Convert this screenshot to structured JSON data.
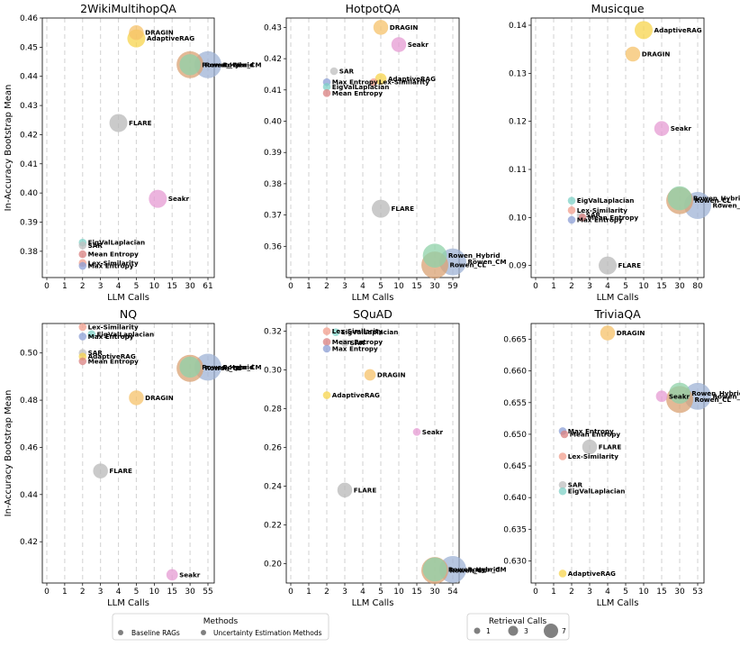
{
  "colors": {
    "DRAGIN": "#f5c16a",
    "AdaptiveRAG": "#f7d44c",
    "Rowen_Hybrid": "#8fd1a8",
    "Rowen_CM": "#9fb3d6",
    "Rowen_CL": "#d9a173",
    "FLARE": "#b8b8b8",
    "Seakr": "#e69bd3",
    "SAR": "#bfbfbf",
    "Max Entropy": "#8c9fd6",
    "EigValLaplacian": "#7fd1c7",
    "Mean Entropy": "#d98080",
    "Lex-Similarity": "#f29d8c",
    "legend_marker": "#808080"
  },
  "x_axis_label": "LLM Calls",
  "y_axis_label": "In-Accuracy Bootstrap Mean",
  "legend": {
    "methods_title": "Methods",
    "methods_items": [
      "Baseline RAGs",
      "Uncertainty Estimation Methods"
    ],
    "retrieval_title": "Retrieval Calls",
    "retrieval_items": [
      "1",
      "3",
      "7"
    ]
  },
  "chart_data": [
    {
      "type": "scatter",
      "title": "2WikiMultihopQA",
      "xlabel": "LLM Calls",
      "ylabel": "In-Accuracy Bootstrap Mean",
      "xticks": [
        "0",
        "1",
        "2",
        "3",
        "4",
        "5",
        "10",
        "15",
        "30",
        "61"
      ],
      "ylim": [
        0.371,
        0.46
      ],
      "yticks": [
        0.38,
        0.39,
        0.4,
        0.41,
        0.42,
        0.43,
        0.44,
        0.45,
        0.46
      ],
      "points": [
        {
          "name": "DRAGIN",
          "x": 5,
          "y": 0.455,
          "r": 3
        },
        {
          "name": "AdaptiveRAG",
          "x": 5,
          "y": 0.453,
          "r": 4
        },
        {
          "name": "Rowen_Hybrid",
          "x": 30,
          "y": 0.444,
          "r": 5
        },
        {
          "name": "Rowen_CM",
          "x": 61,
          "y": 0.444,
          "r": 7
        },
        {
          "name": "Rowen_CL",
          "x": 30,
          "y": 0.444,
          "r": 7
        },
        {
          "name": "FLARE",
          "x": 4,
          "y": 0.424,
          "r": 4
        },
        {
          "name": "Seakr",
          "x": 11,
          "y": 0.398,
          "r": 4
        },
        {
          "name": "EigValLaplacian",
          "x": 2,
          "y": 0.383,
          "r": 1
        },
        {
          "name": "SAR",
          "x": 2,
          "y": 0.382,
          "r": 1
        },
        {
          "name": "Mean Entropy",
          "x": 2,
          "y": 0.379,
          "r": 1
        },
        {
          "name": "Lex-Similarity",
          "x": 2,
          "y": 0.376,
          "r": 1
        },
        {
          "name": "Max Entropy",
          "x": 2,
          "y": 0.375,
          "r": 1
        }
      ]
    },
    {
      "type": "scatter",
      "title": "HotpotQA",
      "xlabel": "LLM Calls",
      "ylabel": "",
      "xticks": [
        "0",
        "1",
        "2",
        "3",
        "4",
        "5",
        "10",
        "15",
        "30",
        "59"
      ],
      "ylim": [
        0.35,
        0.433
      ],
      "yticks": [
        0.36,
        0.37,
        0.38,
        0.39,
        0.4,
        0.41,
        0.42,
        0.43
      ],
      "points": [
        {
          "name": "DRAGIN",
          "x": 5,
          "y": 0.43,
          "r": 3
        },
        {
          "name": "Seakr",
          "x": 10,
          "y": 0.4245,
          "r": 3
        },
        {
          "name": "SAR",
          "x": 2.4,
          "y": 0.416,
          "r": 1
        },
        {
          "name": "AdaptiveRAG",
          "x": 5,
          "y": 0.4135,
          "r": 2
        },
        {
          "name": "Max Entropy",
          "x": 2,
          "y": 0.4125,
          "r": 1
        },
        {
          "name": "Lex-Similarity",
          "x": 4.6,
          "y": 0.4125,
          "r": 1
        },
        {
          "name": "EigValLaplacian",
          "x": 2,
          "y": 0.411,
          "r": 1
        },
        {
          "name": "Mean Entropy",
          "x": 2,
          "y": 0.409,
          "r": 1
        },
        {
          "name": "FLARE",
          "x": 5,
          "y": 0.372,
          "r": 4
        },
        {
          "name": "Rowen_Hybrid",
          "x": 30,
          "y": 0.357,
          "r": 6
        },
        {
          "name": "Rowen_CM",
          "x": 59,
          "y": 0.355,
          "r": 7
        },
        {
          "name": "Rowen_CL",
          "x": 30,
          "y": 0.354,
          "r": 7
        }
      ]
    },
    {
      "type": "scatter",
      "title": "Musicque",
      "xlabel": "LLM Calls",
      "ylabel": "",
      "xticks": [
        "0",
        "1",
        "2",
        "3",
        "4",
        "5",
        "10",
        "15",
        "30",
        "80"
      ],
      "ylim": [
        0.0875,
        0.1415
      ],
      "yticks": [
        0.09,
        0.1,
        0.11,
        0.12,
        0.13,
        0.14
      ],
      "points": [
        {
          "name": "AdaptiveRAG",
          "x": 10,
          "y": 0.139,
          "r": 4
        },
        {
          "name": "DRAGIN",
          "x": 7,
          "y": 0.134,
          "r": 3
        },
        {
          "name": "Seakr",
          "x": 15,
          "y": 0.1185,
          "r": 3
        },
        {
          "name": "EigValLaplacian",
          "x": 2,
          "y": 0.1035,
          "r": 1
        },
        {
          "name": "Lex-Similarity",
          "x": 2,
          "y": 0.1015,
          "r": 1
        },
        {
          "name": "SAR",
          "x": 2.5,
          "y": 0.1005,
          "r": 1
        },
        {
          "name": "Mean Entropy",
          "x": 2.6,
          "y": 0.1,
          "r": 1
        },
        {
          "name": "Max Entropy",
          "x": 2,
          "y": 0.0995,
          "r": 1
        },
        {
          "name": "Rowen_Hybrid",
          "x": 30,
          "y": 0.104,
          "r": 6
        },
        {
          "name": "Rowen_CM",
          "x": 80,
          "y": 0.1025,
          "r": 7
        },
        {
          "name": "Rowen_CL",
          "x": 30,
          "y": 0.1035,
          "r": 7
        },
        {
          "name": "FLARE",
          "x": 4,
          "y": 0.09,
          "r": 4
        }
      ]
    },
    {
      "type": "scatter",
      "title": "NQ",
      "xlabel": "LLM Calls",
      "ylabel": "In-Accuracy Bootstrap Mean",
      "xticks": [
        "0",
        "1",
        "2",
        "3",
        "4",
        "5",
        "10",
        "15",
        "30",
        "55"
      ],
      "ylim": [
        0.4025,
        0.5125
      ],
      "yticks": [
        0.42,
        0.44,
        0.46,
        0.48,
        0.5
      ],
      "points": [
        {
          "name": "Lex-Similarity",
          "x": 2,
          "y": 0.511,
          "r": 1
        },
        {
          "name": "EigValLaplacian",
          "x": 2.5,
          "y": 0.508,
          "r": 1
        },
        {
          "name": "Max Entropy",
          "x": 2,
          "y": 0.507,
          "r": 1
        },
        {
          "name": "SAR",
          "x": 2,
          "y": 0.5,
          "r": 1
        },
        {
          "name": "AdaptiveRAG",
          "x": 2,
          "y": 0.4985,
          "r": 1
        },
        {
          "name": "Mean Entropy",
          "x": 2,
          "y": 0.4965,
          "r": 1
        },
        {
          "name": "Rowen_Hybrid",
          "x": 30,
          "y": 0.494,
          "r": 5
        },
        {
          "name": "Rowen_CM",
          "x": 55,
          "y": 0.494,
          "r": 7
        },
        {
          "name": "Rowen_CL",
          "x": 30,
          "y": 0.4935,
          "r": 7
        },
        {
          "name": "DRAGIN",
          "x": 5,
          "y": 0.481,
          "r": 3
        },
        {
          "name": "FLARE",
          "x": 3,
          "y": 0.45,
          "r": 3
        },
        {
          "name": "Seakr",
          "x": 15,
          "y": 0.406,
          "r": 2
        }
      ]
    },
    {
      "type": "scatter",
      "title": "SQuAD",
      "xlabel": "LLM Calls",
      "ylabel": "",
      "xticks": [
        "0",
        "1",
        "2",
        "3",
        "4",
        "5",
        "10",
        "15",
        "30",
        "54"
      ],
      "ylim": [
        0.19,
        0.324
      ],
      "yticks": [
        0.2,
        0.22,
        0.24,
        0.26,
        0.28,
        0.3,
        0.32
      ],
      "points": [
        {
          "name": "Lex-Similarity",
          "x": 2,
          "y": 0.32,
          "r": 1
        },
        {
          "name": "EigValLaplacian",
          "x": 2.5,
          "y": 0.3195,
          "r": 1
        },
        {
          "name": "Mean Entropy",
          "x": 2,
          "y": 0.3145,
          "r": 1
        },
        {
          "name": "SAR",
          "x": 3,
          "y": 0.314,
          "r": 1
        },
        {
          "name": "Max Entropy",
          "x": 2,
          "y": 0.311,
          "r": 1
        },
        {
          "name": "DRAGIN",
          "x": 4.4,
          "y": 0.2975,
          "r": 2
        },
        {
          "name": "AdaptiveRAG",
          "x": 2,
          "y": 0.287,
          "r": 1
        },
        {
          "name": "Seakr",
          "x": 15,
          "y": 0.268,
          "r": 1
        },
        {
          "name": "FLARE",
          "x": 3,
          "y": 0.238,
          "r": 3
        },
        {
          "name": "Rowen_Hybrid",
          "x": 30,
          "y": 0.197,
          "r": 6
        },
        {
          "name": "Rowen_CM",
          "x": 54,
          "y": 0.197,
          "r": 7
        },
        {
          "name": "Rowen_CL",
          "x": 30,
          "y": 0.1965,
          "r": 7
        }
      ]
    },
    {
      "type": "scatter",
      "title": "TriviaQA",
      "xlabel": "LLM Calls",
      "ylabel": "",
      "xticks": [
        "0",
        "1",
        "2",
        "3",
        "4",
        "5",
        "10",
        "15",
        "30",
        "53"
      ],
      "ylim": [
        0.6265,
        0.6675
      ],
      "yticks": [
        0.63,
        0.635,
        0.64,
        0.645,
        0.65,
        0.655,
        0.66,
        0.665
      ],
      "points": [
        {
          "name": "DRAGIN",
          "x": 4,
          "y": 0.666,
          "r": 3
        },
        {
          "name": "Rowen_Hybrid",
          "x": 30,
          "y": 0.6565,
          "r": 5
        },
        {
          "name": "Seakr",
          "x": 15,
          "y": 0.656,
          "r": 2
        },
        {
          "name": "Rowen_CM",
          "x": 53,
          "y": 0.656,
          "r": 7
        },
        {
          "name": "Rowen_CL",
          "x": 30,
          "y": 0.6555,
          "r": 7
        },
        {
          "name": "Max Entropy",
          "x": 1.5,
          "y": 0.6505,
          "r": 1
        },
        {
          "name": "Mean Entropy",
          "x": 1.6,
          "y": 0.65,
          "r": 1
        },
        {
          "name": "FLARE",
          "x": 3,
          "y": 0.648,
          "r": 3
        },
        {
          "name": "Lex-Similarity",
          "x": 1.5,
          "y": 0.6465,
          "r": 1
        },
        {
          "name": "SAR",
          "x": 1.5,
          "y": 0.642,
          "r": 1
        },
        {
          "name": "EigValLaplacian",
          "x": 1.5,
          "y": 0.641,
          "r": 1
        },
        {
          "name": "AdaptiveRAG",
          "x": 1.5,
          "y": 0.628,
          "r": 1
        }
      ]
    }
  ]
}
